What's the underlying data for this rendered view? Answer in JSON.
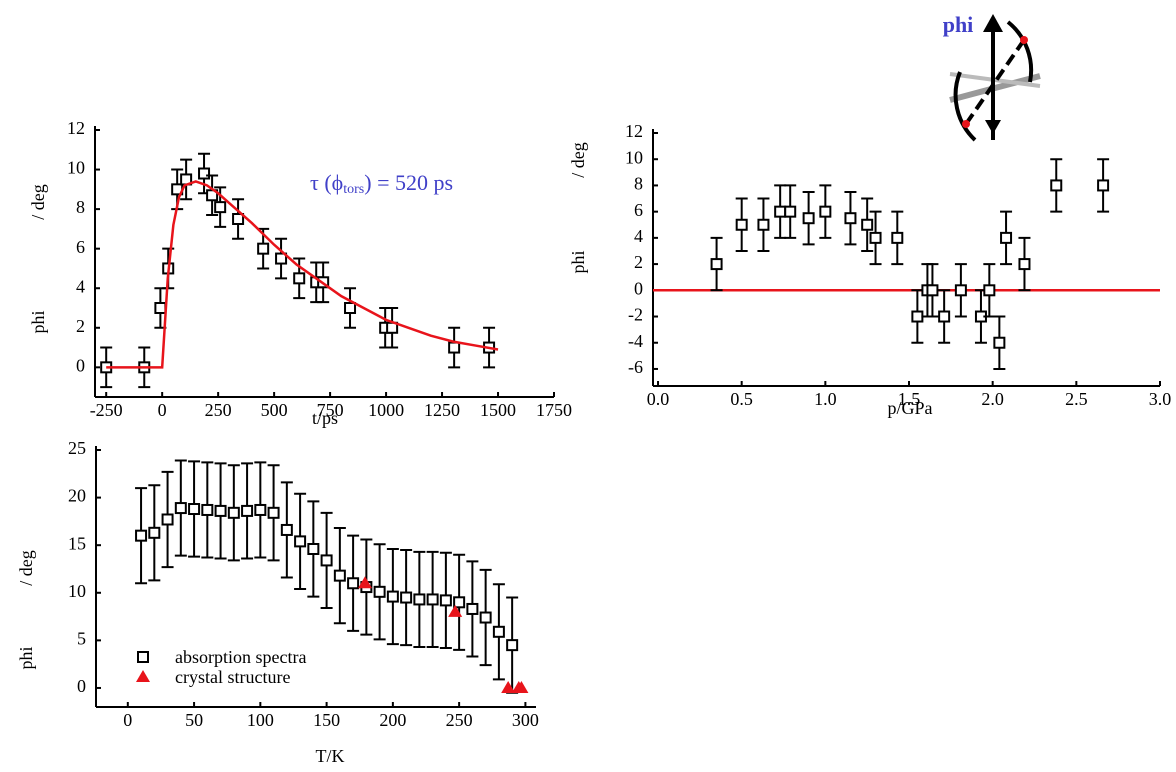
{
  "inset": {
    "label": "phi"
  },
  "chart_data": [
    {
      "type": "scatter",
      "xlabel": "t/ps",
      "ylabel": [
        "phi",
        "/ deg"
      ],
      "xlim": [
        -300,
        1750
      ],
      "xticks": [
        -250,
        0,
        250,
        500,
        750,
        1000,
        1250,
        1500,
        1750
      ],
      "ylim": [
        -1.5,
        12
      ],
      "yticks": [
        0,
        2,
        4,
        6,
        8,
        10,
        12
      ],
      "annotation": {
        "text": "τ (ϕ",
        "sub": "tors",
        "after": ") = 520 ps",
        "color": "#4040c8"
      },
      "series": [
        {
          "marker": "square",
          "color": "#000000",
          "x": [
            -250,
            -80,
            -8,
            27,
            67,
            107,
            187,
            223,
            259,
            339,
            451,
            531,
            612,
            688,
            719,
            839,
            996,
            1027,
            1304,
            1460
          ],
          "values": [
            0,
            0,
            3,
            5,
            9,
            9.5,
            9.8,
            8.7,
            8.1,
            7.5,
            6,
            5.5,
            4.5,
            4.3,
            4.3,
            3,
            2,
            2,
            1,
            1
          ],
          "errors": [
            1,
            1,
            1,
            1,
            1,
            1,
            1,
            1,
            1,
            1,
            1,
            1,
            1,
            1,
            1,
            1,
            1,
            1,
            1,
            1
          ]
        },
        {
          "marker": "line",
          "color": "#e8141b",
          "x": [
            -250,
            0,
            25,
            50,
            75,
            100,
            150,
            200,
            250,
            300,
            400,
            500,
            600,
            700,
            800,
            900,
            1000,
            1100,
            1200,
            1300,
            1400,
            1500
          ],
          "values": [
            0,
            0,
            4.5,
            7.2,
            8.6,
            9.2,
            9.4,
            9.2,
            8.8,
            8.3,
            7.3,
            6.2,
            5.2,
            4.4,
            3.6,
            3.0,
            2.4,
            2.0,
            1.6,
            1.3,
            1.1,
            0.9
          ]
        }
      ]
    },
    {
      "type": "scatter",
      "xlabel": "p/GPa",
      "ylabel": [
        "phi",
        "/ deg"
      ],
      "xlim": [
        -0.03,
        3.0
      ],
      "xticks": [
        {
          "value": 0,
          "label": "0.0"
        },
        0.5,
        {
          "value": 1,
          "label": "1.0"
        },
        1.5,
        {
          "value": 2,
          "label": "2.0"
        },
        2.5,
        {
          "value": 3,
          "label": "3.0"
        }
      ],
      "ylim": [
        -7.3,
        12
      ],
      "yticks": [
        -6,
        -4,
        -2,
        0,
        2,
        4,
        6,
        8,
        10,
        12
      ],
      "hline": 0,
      "hline_color": "#e8141b",
      "series": [
        {
          "marker": "square",
          "color": "#000000",
          "x": [
            0.35,
            0.5,
            0.63,
            0.73,
            0.79,
            0.9,
            1.0,
            1.15,
            1.25,
            1.3,
            1.43,
            1.55,
            1.61,
            1.64,
            1.71,
            1.81,
            1.93,
            1.98,
            2.04,
            2.08,
            2.19,
            2.38,
            2.66
          ],
          "values": [
            2,
            5,
            5,
            6,
            6,
            5.5,
            6,
            5.5,
            5,
            4,
            4,
            -2,
            0,
            0,
            -2,
            0,
            -2,
            0,
            -4,
            4,
            2,
            8,
            8
          ],
          "errors": [
            2,
            2,
            2,
            2,
            2,
            2,
            2,
            2,
            2,
            2,
            2,
            2,
            2,
            2,
            2,
            2,
            2,
            2,
            2,
            2,
            2,
            2,
            2
          ]
        }
      ]
    },
    {
      "type": "scatter",
      "xlabel": "T/K",
      "ylabel": [
        "phi",
        "/ deg"
      ],
      "xlim": [
        -24,
        308
      ],
      "xticks": [
        0,
        50,
        100,
        150,
        200,
        250,
        300
      ],
      "ylim": [
        -2,
        25
      ],
      "yticks": [
        0,
        5,
        10,
        15,
        20,
        25
      ],
      "legend": "lower left",
      "series": [
        {
          "name": "absorption spectra",
          "marker": "square",
          "color": "#000000",
          "x": [
            10,
            20,
            30,
            40,
            50,
            60,
            70,
            80,
            90,
            100,
            110,
            120,
            130,
            140,
            150,
            160,
            170,
            180,
            190,
            200,
            210,
            220,
            230,
            240,
            250,
            260,
            270,
            280,
            290
          ],
          "values": [
            16,
            16.3,
            17.7,
            18.9,
            18.8,
            18.7,
            18.6,
            18.4,
            18.6,
            18.7,
            18.4,
            16.6,
            15.4,
            14.6,
            13.4,
            11.8,
            11,
            10.6,
            10.1,
            9.6,
            9.5,
            9.3,
            9.3,
            9.2,
            9,
            8.3,
            7.4,
            5.9,
            4.5
          ],
          "errors": [
            5,
            5,
            5,
            5,
            5,
            5,
            5,
            5,
            5,
            5,
            5,
            5,
            5,
            5,
            5,
            5,
            5,
            5,
            5,
            5,
            5,
            5,
            5,
            5,
            5,
            5,
            5,
            5,
            5
          ]
        },
        {
          "name": "crystal structure",
          "marker": "triangle",
          "color": "#e8141b",
          "x": [
            179,
            247,
            287,
            295,
            297
          ],
          "values": [
            11,
            8,
            0,
            0,
            0
          ]
        }
      ]
    }
  ]
}
